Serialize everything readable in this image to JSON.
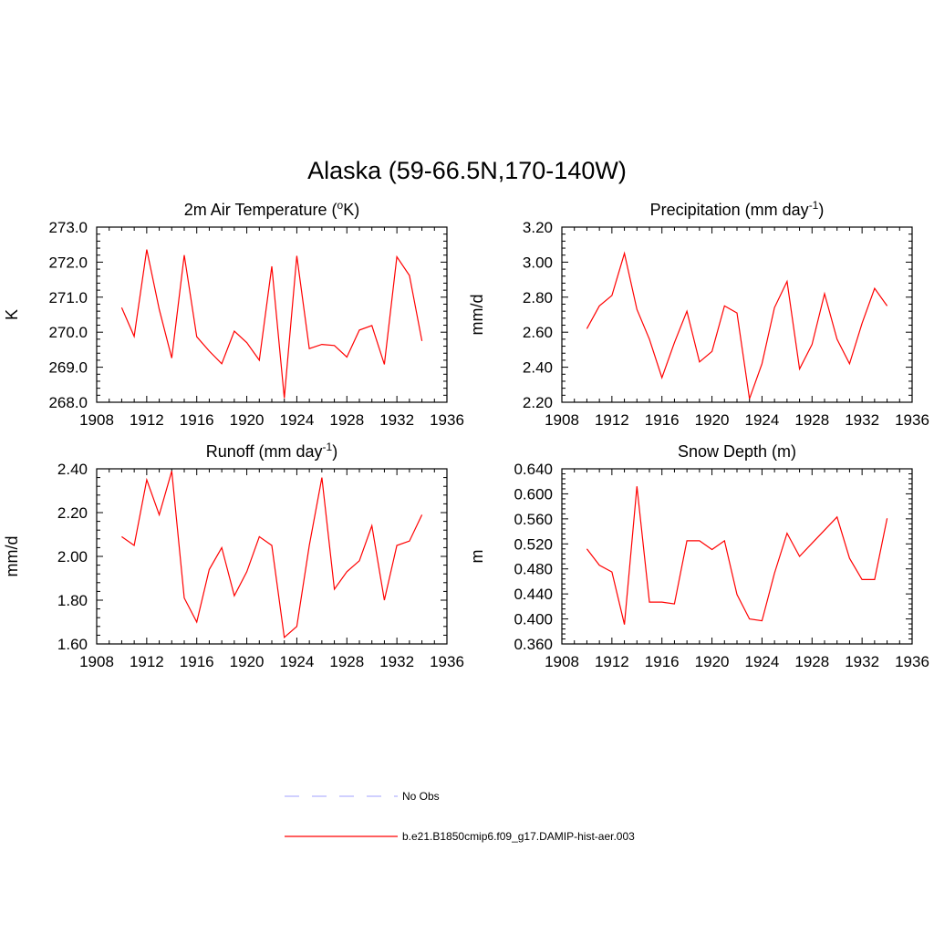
{
  "figure": {
    "title": "Alaska (59-66.5N,170-140W)"
  },
  "colors": {
    "model_line": "#ff0000",
    "obs_line": "#b3b3ff",
    "axis": "#000000"
  },
  "legend": {
    "placement": "bottom-center",
    "entries": [
      {
        "label": "No Obs",
        "style": "dashed",
        "color": "#b3b3ff"
      },
      {
        "label": "b.e21.B1850cmip6.f09_g17.DAMIP-hist-aer.003",
        "style": "solid",
        "color": "#ff0000"
      }
    ]
  },
  "chart_data": [
    {
      "type": "line",
      "title": "2m Air Temperature (",
      "title_sup": "o",
      "title_after": "K)",
      "ylabel": "K",
      "xlim": [
        1908,
        1936
      ],
      "ylim": [
        268.0,
        273.0
      ],
      "x_ticks": [
        1908,
        1912,
        1916,
        1920,
        1924,
        1928,
        1932,
        1936
      ],
      "y_ticks": [
        268.0,
        269.0,
        270.0,
        271.0,
        272.0,
        273.0
      ],
      "y_tick_labels": [
        "268.0",
        "269.0",
        "270.0",
        "271.0",
        "272.0",
        "273.0"
      ],
      "series": [
        {
          "x": [
            1910,
            1911,
            1912,
            1913,
            1914,
            1915,
            1916,
            1917,
            1918,
            1919,
            1920,
            1921,
            1922,
            1923,
            1924,
            1925,
            1926,
            1927,
            1928,
            1929,
            1930,
            1931,
            1932,
            1933,
            1934
          ],
          "values": [
            270.7,
            269.88,
            272.36,
            270.65,
            269.26,
            272.2,
            269.87,
            269.46,
            269.1,
            270.03,
            269.7,
            269.2,
            271.88,
            268.12,
            272.18,
            269.53,
            269.65,
            269.62,
            269.29,
            270.06,
            270.19,
            269.08,
            272.15,
            271.62,
            269.75
          ]
        }
      ]
    },
    {
      "type": "line",
      "title": "Precipitation (mm day",
      "title_sup": "-1",
      "title_after": ")",
      "ylabel": "mm/d",
      "xlim": [
        1908,
        1936
      ],
      "ylim": [
        2.2,
        3.2
      ],
      "x_ticks": [
        1908,
        1912,
        1916,
        1920,
        1924,
        1928,
        1932,
        1936
      ],
      "y_ticks": [
        2.2,
        2.4,
        2.6,
        2.8,
        3.0,
        3.2
      ],
      "y_tick_labels": [
        "2.20",
        "2.40",
        "2.60",
        "2.80",
        "3.00",
        "3.20"
      ],
      "series": [
        {
          "x": [
            1910,
            1911,
            1912,
            1913,
            1914,
            1915,
            1916,
            1917,
            1918,
            1919,
            1920,
            1921,
            1922,
            1923,
            1924,
            1925,
            1926,
            1927,
            1928,
            1929,
            1930,
            1931,
            1932,
            1933,
            1934
          ],
          "values": [
            2.62,
            2.75,
            2.81,
            3.05,
            2.73,
            2.56,
            2.34,
            2.54,
            2.72,
            2.43,
            2.49,
            2.75,
            2.71,
            2.22,
            2.42,
            2.74,
            2.89,
            2.39,
            2.53,
            2.82,
            2.56,
            2.42,
            2.65,
            2.85,
            2.75
          ]
        }
      ]
    },
    {
      "type": "line",
      "title": "Runoff (mm day",
      "title_sup": "-1",
      "title_after": ")",
      "ylabel": "mm/d",
      "xlim": [
        1908,
        1936
      ],
      "ylim": [
        1.6,
        2.4
      ],
      "x_ticks": [
        1908,
        1912,
        1916,
        1920,
        1924,
        1928,
        1932,
        1936
      ],
      "y_ticks": [
        1.6,
        1.8,
        2.0,
        2.2,
        2.4
      ],
      "y_tick_labels": [
        "1.60",
        "1.80",
        "2.00",
        "2.20",
        "2.40"
      ],
      "series": [
        {
          "x": [
            1910,
            1911,
            1912,
            1913,
            1914,
            1915,
            1916,
            1917,
            1918,
            1919,
            1920,
            1921,
            1922,
            1923,
            1924,
            1925,
            1926,
            1927,
            1928,
            1929,
            1930,
            1931,
            1932,
            1933,
            1934
          ],
          "values": [
            2.09,
            2.05,
            2.35,
            2.19,
            2.39,
            1.81,
            1.7,
            1.94,
            2.04,
            1.82,
            1.93,
            2.09,
            2.05,
            1.63,
            1.68,
            2.05,
            2.36,
            1.85,
            1.93,
            1.98,
            2.14,
            1.8,
            2.05,
            2.07,
            2.19
          ]
        }
      ]
    },
    {
      "type": "line",
      "title": "Snow Depth (m)",
      "title_sup": "",
      "title_after": "",
      "ylabel": "m",
      "xlim": [
        1908,
        1936
      ],
      "ylim": [
        0.36,
        0.64
      ],
      "x_ticks": [
        1908,
        1912,
        1916,
        1920,
        1924,
        1928,
        1932,
        1936
      ],
      "y_ticks": [
        0.36,
        0.4,
        0.44,
        0.48,
        0.52,
        0.56,
        0.6,
        0.64
      ],
      "y_tick_labels": [
        "0.360",
        "0.400",
        "0.440",
        "0.480",
        "0.520",
        "0.560",
        "0.600",
        "0.640"
      ],
      "series": [
        {
          "x": [
            1910,
            1911,
            1912,
            1913,
            1914,
            1915,
            1916,
            1917,
            1918,
            1919,
            1920,
            1921,
            1922,
            1923,
            1924,
            1925,
            1926,
            1927,
            1928,
            1929,
            1930,
            1931,
            1932,
            1933,
            1934
          ],
          "values": [
            0.512,
            0.486,
            0.475,
            0.391,
            0.612,
            0.427,
            0.427,
            0.424,
            0.525,
            0.525,
            0.511,
            0.525,
            0.439,
            0.4,
            0.397,
            0.473,
            0.537,
            0.5,
            0.521,
            0.542,
            0.563,
            0.497,
            0.463,
            0.463,
            0.561
          ]
        }
      ]
    }
  ]
}
